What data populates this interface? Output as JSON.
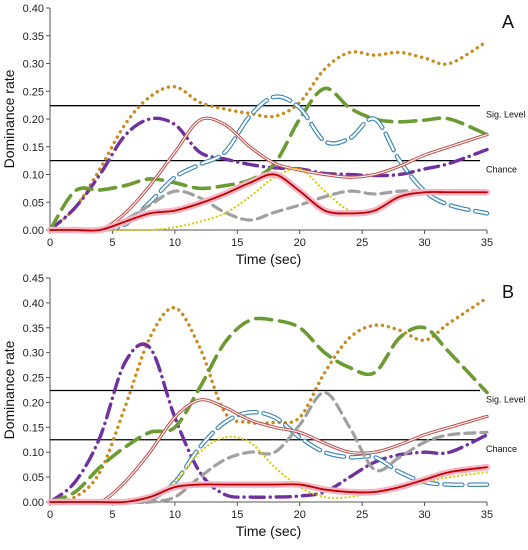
{
  "chart_data": [
    {
      "type": "line",
      "panel_label": "A",
      "xlabel": "Time (sec)",
      "ylabel": "Dominance rate",
      "xlim": [
        0,
        35
      ],
      "ylim": [
        0,
        0.4
      ],
      "x_ticks": [
        0,
        5,
        10,
        15,
        20,
        25,
        30,
        35
      ],
      "x_tick_labels": [
        "0",
        "5",
        "10",
        "15",
        "20",
        "25",
        "30",
        "35"
      ],
      "y_ticks": [
        0,
        0.05,
        0.1,
        0.15,
        0.2,
        0.25,
        0.3,
        0.35,
        0.4
      ],
      "y_tick_labels": [
        "0.00",
        "0.05",
        "0.10",
        "0.15",
        "0.20",
        "0.25",
        "0.30",
        "0.35",
        "0.40"
      ],
      "reference_lines": [
        {
          "label": "Sig. Level",
          "y": 0.224
        },
        {
          "label": "Chance",
          "y": 0.125
        }
      ],
      "series": [
        {
          "style": "orange-dotted",
          "color": "#c98a1e",
          "x": [
            0,
            2,
            4,
            6,
            8,
            10,
            12,
            14,
            16,
            18,
            20,
            22,
            24,
            26,
            28,
            30,
            32,
            35
          ],
          "y": [
            0,
            0.04,
            0.11,
            0.19,
            0.24,
            0.258,
            0.23,
            0.218,
            0.21,
            0.205,
            0.23,
            0.29,
            0.32,
            0.315,
            0.32,
            0.31,
            0.3,
            0.34
          ]
        },
        {
          "style": "purple-dashdot",
          "color": "#7030a0",
          "x": [
            0,
            2,
            4,
            6,
            8,
            10,
            12,
            14,
            16,
            18,
            20,
            22,
            24,
            26,
            28,
            30,
            32,
            35
          ],
          "y": [
            0,
            0.04,
            0.1,
            0.17,
            0.2,
            0.19,
            0.14,
            0.128,
            0.118,
            0.112,
            0.11,
            0.102,
            0.1,
            0.098,
            0.1,
            0.11,
            0.12,
            0.145
          ]
        },
        {
          "style": "green-dashed",
          "color": "#6b9b33",
          "x": [
            0,
            2,
            4,
            6,
            8,
            10,
            12,
            14,
            16,
            18,
            20,
            22,
            24,
            26,
            28,
            30,
            32,
            35
          ],
          "y": [
            0,
            0.07,
            0.072,
            0.08,
            0.092,
            0.085,
            0.075,
            0.08,
            0.09,
            0.12,
            0.2,
            0.255,
            0.22,
            0.2,
            0.195,
            0.198,
            0.2,
            0.172
          ]
        },
        {
          "style": "blue-outline-dashed",
          "color": "#4aa3d6",
          "x": [
            0,
            2,
            4,
            6,
            8,
            10,
            12,
            14,
            16,
            18,
            20,
            22,
            24,
            26,
            28,
            30,
            32,
            35
          ],
          "y": [
            0,
            0,
            0,
            0.01,
            0.05,
            0.095,
            0.118,
            0.14,
            0.205,
            0.24,
            0.22,
            0.16,
            0.165,
            0.2,
            0.125,
            0.07,
            0.045,
            0.03
          ]
        },
        {
          "style": "red-double-line",
          "color": "#c0504d",
          "x": [
            0,
            2,
            4,
            6,
            8,
            10,
            12,
            14,
            16,
            18,
            20,
            22,
            24,
            26,
            28,
            30,
            32,
            35
          ],
          "y": [
            0,
            0,
            0,
            0.03,
            0.08,
            0.14,
            0.198,
            0.19,
            0.15,
            0.12,
            0.108,
            0.1,
            0.095,
            0.1,
            0.115,
            0.135,
            0.15,
            0.172
          ]
        },
        {
          "style": "gray-dashed",
          "color": "#a0a0a0",
          "x": [
            0,
            2,
            4,
            6,
            8,
            10,
            12,
            14,
            16,
            18,
            20,
            22,
            24,
            26,
            28,
            30,
            32,
            35
          ],
          "y": [
            0,
            0,
            0,
            0.018,
            0.045,
            0.07,
            0.058,
            0.032,
            0.018,
            0.032,
            0.045,
            0.06,
            0.07,
            0.065,
            0.07,
            0.07,
            0.07,
            0.07
          ]
        },
        {
          "style": "yellow-dotted",
          "color": "#e0c800",
          "x": [
            0,
            2,
            4,
            6,
            8,
            10,
            12,
            14,
            16,
            18,
            20,
            22,
            24,
            26,
            28,
            30,
            32,
            35
          ],
          "y": [
            0,
            0,
            0,
            0,
            0,
            0.005,
            0.015,
            0.03,
            0.06,
            0.095,
            0.11,
            0.07,
            0.035,
            0.035,
            0.06,
            0.068,
            0.068,
            0.068
          ]
        },
        {
          "style": "red-pink-band",
          "color": "#c00000",
          "x": [
            0,
            2,
            4,
            6,
            8,
            10,
            12,
            14,
            16,
            18,
            20,
            22,
            24,
            26,
            28,
            30,
            32,
            35
          ],
          "y": [
            0,
            0,
            0,
            0.015,
            0.03,
            0.035,
            0.048,
            0.065,
            0.085,
            0.1,
            0.07,
            0.035,
            0.03,
            0.035,
            0.06,
            0.068,
            0.068,
            0.068
          ]
        }
      ]
    },
    {
      "type": "line",
      "panel_label": "B",
      "xlabel": "Time (sec)",
      "ylabel": "Dominance rate",
      "xlim": [
        0,
        35
      ],
      "ylim": [
        0,
        0.45
      ],
      "x_ticks": [
        0,
        5,
        10,
        15,
        20,
        25,
        30,
        35
      ],
      "x_tick_labels": [
        "0",
        "5",
        "10",
        "15",
        "20",
        "25",
        "30",
        "35"
      ],
      "y_ticks": [
        0,
        0.05,
        0.1,
        0.15,
        0.2,
        0.25,
        0.3,
        0.35,
        0.4,
        0.45
      ],
      "y_tick_labels": [
        "0.00",
        "0.05",
        "0.10",
        "0.15",
        "0.20",
        "0.25",
        "0.30",
        "0.35",
        "0.40",
        "0.45"
      ],
      "reference_lines": [
        {
          "label": "Sig. Level",
          "y": 0.224
        },
        {
          "label": "Chance",
          "y": 0.125
        }
      ],
      "series": [
        {
          "style": "orange-dotted",
          "color": "#c98a1e",
          "x": [
            0,
            2,
            4,
            6,
            8,
            10,
            12,
            14,
            16,
            18,
            20,
            22,
            24,
            26,
            28,
            30,
            32,
            35
          ],
          "y": [
            0,
            0.01,
            0.06,
            0.19,
            0.33,
            0.39,
            0.31,
            0.18,
            0.16,
            0.16,
            0.17,
            0.26,
            0.33,
            0.355,
            0.345,
            0.325,
            0.36,
            0.41
          ]
        },
        {
          "style": "purple-dashdot",
          "color": "#7030a0",
          "x": [
            0,
            2,
            4,
            6,
            8,
            10,
            12,
            14,
            16,
            18,
            20,
            22,
            24,
            26,
            28,
            30,
            32,
            35
          ],
          "y": [
            0,
            0.04,
            0.13,
            0.28,
            0.31,
            0.17,
            0.06,
            0.015,
            0.01,
            0.01,
            0.012,
            0.02,
            0.05,
            0.08,
            0.095,
            0.1,
            0.1,
            0.135
          ]
        },
        {
          "style": "green-dashed",
          "color": "#6b9b33",
          "x": [
            0,
            2,
            4,
            6,
            8,
            10,
            12,
            14,
            16,
            18,
            20,
            22,
            24,
            26,
            28,
            30,
            32,
            35
          ],
          "y": [
            0,
            0.02,
            0.07,
            0.11,
            0.14,
            0.15,
            0.23,
            0.32,
            0.365,
            0.365,
            0.35,
            0.3,
            0.27,
            0.26,
            0.33,
            0.35,
            0.3,
            0.22
          ]
        },
        {
          "style": "blue-outline-dashed",
          "color": "#4aa3d6",
          "x": [
            0,
            2,
            4,
            6,
            8,
            10,
            12,
            14,
            16,
            18,
            20,
            22,
            24,
            26,
            28,
            30,
            32,
            35
          ],
          "y": [
            0,
            0,
            0,
            0,
            0.005,
            0.04,
            0.11,
            0.16,
            0.18,
            0.17,
            0.13,
            0.1,
            0.09,
            0.09,
            0.06,
            0.04,
            0.035,
            0.035
          ]
        },
        {
          "style": "red-double-line",
          "color": "#c0504d",
          "x": [
            0,
            2,
            4,
            6,
            8,
            10,
            12,
            14,
            16,
            18,
            20,
            22,
            24,
            26,
            28,
            30,
            32,
            35
          ],
          "y": [
            0,
            0,
            0,
            0.04,
            0.1,
            0.17,
            0.205,
            0.19,
            0.165,
            0.15,
            0.14,
            0.118,
            0.1,
            0.1,
            0.115,
            0.135,
            0.15,
            0.172
          ]
        },
        {
          "style": "gray-dashed",
          "color": "#a0a0a0",
          "x": [
            0,
            2,
            4,
            6,
            8,
            10,
            12,
            14,
            16,
            18,
            20,
            22,
            24,
            26,
            28,
            30,
            32,
            35
          ],
          "y": [
            0,
            0,
            0,
            0,
            0,
            0.01,
            0.05,
            0.085,
            0.1,
            0.1,
            0.155,
            0.22,
            0.15,
            0.065,
            0.09,
            0.12,
            0.135,
            0.14
          ]
        },
        {
          "style": "yellow-dotted",
          "color": "#e0c800",
          "x": [
            0,
            2,
            4,
            6,
            8,
            10,
            12,
            14,
            16,
            18,
            20,
            22,
            24,
            26,
            28,
            30,
            32,
            35
          ],
          "y": [
            0,
            0,
            0,
            0,
            0.005,
            0.04,
            0.1,
            0.13,
            0.12,
            0.07,
            0.03,
            0.01,
            0.01,
            0.02,
            0.03,
            0.04,
            0.05,
            0.06
          ]
        },
        {
          "style": "red-pink-band",
          "color": "#c00000",
          "x": [
            0,
            2,
            4,
            6,
            8,
            10,
            12,
            14,
            16,
            18,
            20,
            22,
            24,
            26,
            28,
            30,
            32,
            35
          ],
          "y": [
            0,
            0,
            0,
            0,
            0.01,
            0.03,
            0.035,
            0.035,
            0.035,
            0.035,
            0.035,
            0.025,
            0.02,
            0.02,
            0.03,
            0.045,
            0.06,
            0.07
          ]
        }
      ]
    }
  ]
}
